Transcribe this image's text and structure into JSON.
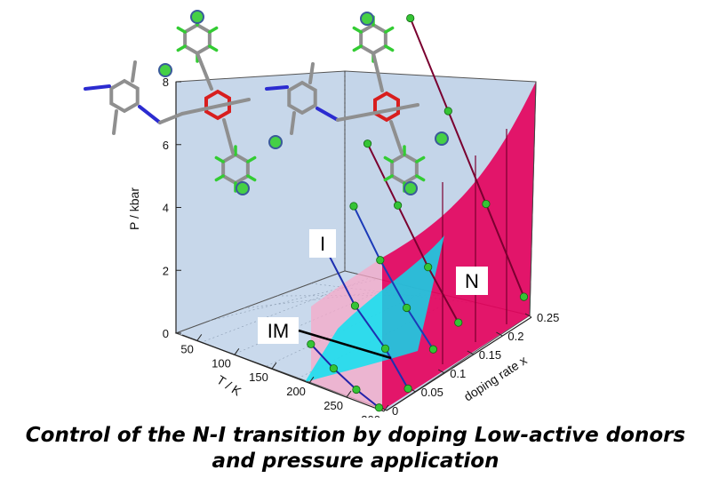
{
  "chart_data": {
    "type": "surface-3d",
    "axes": {
      "pressure": {
        "label": "P / kbar",
        "ticks": [
          "0",
          "2",
          "4",
          "6",
          "8"
        ],
        "range": [
          0,
          8
        ]
      },
      "temperature": {
        "label": "T / K",
        "ticks": [
          "50",
          "100",
          "150",
          "200",
          "250",
          "300"
        ],
        "range": [
          30,
          300
        ]
      },
      "doping": {
        "label": "doping rate x",
        "ticks": [
          "0",
          "0.05",
          "0.1",
          "0.15",
          "0.2",
          "0.25"
        ],
        "range": [
          0,
          0.25
        ]
      }
    },
    "regions": {
      "ionic": "I",
      "neutral": "N",
      "intermediate": "IM"
    },
    "boundary_curves": [
      {
        "x": 0.0,
        "points": [
          {
            "p": 0,
            "T": 290
          },
          {
            "p": 0.3,
            "T": 260
          },
          {
            "p": 0.7,
            "T": 230
          },
          {
            "p": 1.2,
            "T": 200
          }
        ]
      },
      {
        "x": 0.05,
        "points": [
          {
            "p": 0,
            "T": 290
          },
          {
            "p": 1.0,
            "T": 260
          },
          {
            "p": 2.0,
            "T": 220
          },
          {
            "p": 3.5,
            "T": 180
          }
        ]
      },
      {
        "x": 0.1,
        "points": [
          {
            "p": 0.6,
            "T": 285
          },
          {
            "p": 1.6,
            "T": 250
          },
          {
            "p": 2.8,
            "T": 215
          },
          {
            "p": 4.2,
            "T": 180
          }
        ]
      },
      {
        "x": 0.15,
        "points": [
          {
            "p": 0.8,
            "T": 280
          },
          {
            "p": 2.2,
            "T": 240
          },
          {
            "p": 3.8,
            "T": 200
          },
          {
            "p": 5.4,
            "T": 160
          }
        ]
      },
      {
        "x": 0.25,
        "points": [
          {
            "p": 0.5,
            "T": 290
          },
          {
            "p": 3.0,
            "T": 240
          },
          {
            "p": 5.5,
            "T": 190
          },
          {
            "p": 8.0,
            "T": 140
          }
        ]
      }
    ]
  },
  "caption": {
    "line1": "Control of the N-I transition by doping Low-active donors",
    "line2": "and pressure application"
  }
}
